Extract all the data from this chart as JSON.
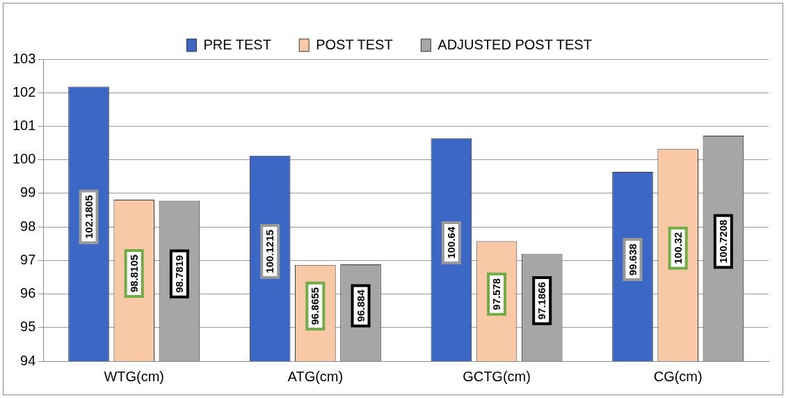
{
  "chart_data": {
    "type": "bar",
    "categories": [
      "WTG(cm)",
      "ATG(cm)",
      "GCTG(cm)",
      "CG(cm)"
    ],
    "series": [
      {
        "name": "PRE TEST",
        "color": "#3d67c4",
        "values": [
          102.1805,
          100.1215,
          100.64,
          99.638
        ]
      },
      {
        "name": "POST TEST",
        "color": "#f9c8a6",
        "values": [
          98.8105,
          96.8655,
          97.578,
          100.32
        ]
      },
      {
        "name": "ADJUSTED POST TEST",
        "color": "#a6a6a6",
        "values": [
          98.7819,
          96.884,
          97.1866,
          100.7208
        ]
      }
    ],
    "ylim": [
      94,
      103
    ],
    "yticks": [
      94,
      95,
      96,
      97,
      98,
      99,
      100,
      101,
      102,
      103
    ],
    "grid": "y",
    "legend": "top",
    "data_labels": true
  }
}
